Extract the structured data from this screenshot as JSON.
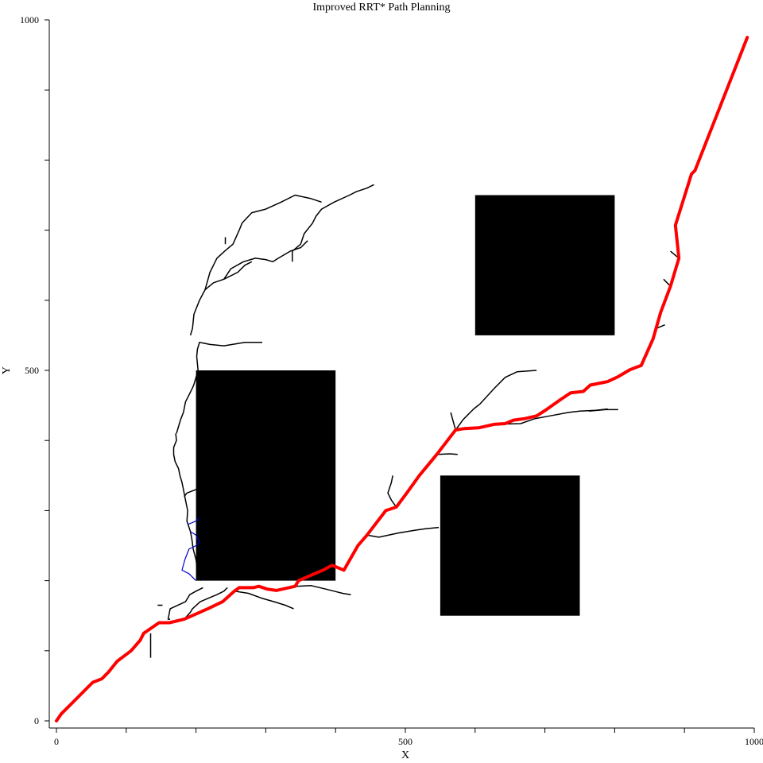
{
  "chart_data": {
    "type": "line",
    "title": "Improved RRT* Path Planning",
    "xlabel": "X",
    "ylabel": "Y",
    "xlim": [
      0,
      1000
    ],
    "ylim": [
      0,
      1000
    ],
    "xticks": [
      0,
      100,
      200,
      300,
      400,
      500,
      600,
      700,
      800,
      900,
      1000
    ],
    "yticks": [
      0,
      100,
      200,
      300,
      400,
      500,
      600,
      700,
      800,
      900,
      1000
    ],
    "xtick_labels": [
      "0",
      "500",
      "1000"
    ],
    "ytick_labels": [
      "0",
      "500",
      "1000"
    ],
    "grid": false,
    "colors": {
      "tree": "#000000",
      "rewired": "#0000cc",
      "path": "#ff0000",
      "obstacle": "#000000"
    },
    "obstacles": [
      {
        "x": 200,
        "y": 200,
        "width": 200,
        "height": 300
      },
      {
        "x": 550,
        "y": 150,
        "width": 200,
        "height": 200
      },
      {
        "x": 600,
        "y": 550,
        "width": 200,
        "height": 200
      }
    ],
    "series": [
      {
        "role": "path",
        "points": [
          [
            0,
            0
          ],
          [
            7,
            10
          ],
          [
            22,
            25
          ],
          [
            52,
            55
          ],
          [
            65,
            60
          ],
          [
            75,
            70
          ],
          [
            87,
            85
          ],
          [
            107,
            100
          ],
          [
            120,
            115
          ],
          [
            125,
            125
          ],
          [
            147,
            140
          ],
          [
            162,
            140
          ],
          [
            183,
            145
          ],
          [
            217,
            160
          ],
          [
            238,
            170
          ],
          [
            255,
            185
          ],
          [
            262,
            190
          ],
          [
            282,
            190
          ],
          [
            290,
            192
          ],
          [
            302,
            188
          ],
          [
            315,
            186
          ],
          [
            333,
            190
          ],
          [
            342,
            192
          ],
          [
            347,
            200
          ],
          [
            363,
            207
          ],
          [
            382,
            215
          ],
          [
            395,
            222
          ],
          [
            412,
            215
          ],
          [
            432,
            250
          ],
          [
            445,
            265
          ],
          [
            472,
            300
          ],
          [
            487,
            305
          ],
          [
            502,
            325
          ],
          [
            520,
            350
          ],
          [
            545,
            380
          ],
          [
            572,
            415
          ],
          [
            585,
            417
          ],
          [
            605,
            418
          ],
          [
            627,
            423
          ],
          [
            643,
            424
          ],
          [
            655,
            429
          ],
          [
            670,
            431
          ],
          [
            688,
            435
          ],
          [
            702,
            444
          ],
          [
            722,
            458
          ],
          [
            737,
            468
          ],
          [
            755,
            470
          ],
          [
            765,
            479
          ],
          [
            790,
            484
          ],
          [
            805,
            491
          ],
          [
            822,
            501
          ],
          [
            838,
            507
          ],
          [
            855,
            545
          ],
          [
            866,
            583
          ],
          [
            880,
            620
          ],
          [
            892,
            660
          ],
          [
            887,
            707
          ],
          [
            910,
            780
          ],
          [
            915,
            785
          ],
          [
            990,
            975
          ]
        ]
      }
    ],
    "tree_branches": [
      [
        [
          163,
          145
        ],
        [
          160,
          145
        ],
        [
          163,
          160
        ],
        [
          185,
          170
        ],
        [
          191,
          180
        ],
        [
          200,
          185
        ],
        [
          210,
          190
        ]
      ],
      [
        [
          255,
          185
        ],
        [
          275,
          182
        ],
        [
          294,
          175
        ],
        [
          312,
          170
        ],
        [
          328,
          165
        ],
        [
          340,
          160
        ]
      ],
      [
        [
          342,
          192
        ],
        [
          365,
          193
        ],
        [
          386,
          188
        ],
        [
          398,
          185
        ],
        [
          410,
          182
        ],
        [
          422,
          180
        ]
      ],
      [
        [
          445,
          265
        ],
        [
          462,
          262
        ],
        [
          490,
          268
        ],
        [
          514,
          272
        ],
        [
          529,
          274
        ],
        [
          548,
          276
        ]
      ],
      [
        [
          487,
          305
        ],
        [
          480,
          315
        ],
        [
          475,
          325
        ],
        [
          480,
          340
        ],
        [
          482,
          350
        ]
      ],
      [
        [
          545,
          380
        ],
        [
          564,
          381
        ],
        [
          575,
          380
        ]
      ],
      [
        [
          565,
          440
        ],
        [
          572,
          415
        ],
        [
          583,
          430
        ],
        [
          598,
          445
        ],
        [
          607,
          452
        ],
        [
          628,
          475
        ],
        [
          643,
          490
        ],
        [
          660,
          498
        ],
        [
          688,
          500
        ]
      ],
      [
        [
          605,
          418
        ],
        [
          627,
          423
        ],
        [
          665,
          424
        ],
        [
          685,
          431
        ],
        [
          707,
          435
        ],
        [
          734,
          440
        ],
        [
          750,
          442
        ],
        [
          773,
          443
        ],
        [
          790,
          445
        ]
      ],
      [
        [
          763,
          442
        ],
        [
          787,
          444
        ],
        [
          805,
          444
        ]
      ],
      [
        [
          790,
          484
        ],
        [
          805,
          491
        ]
      ],
      [
        [
          822,
          501
        ],
        [
          838,
          507
        ],
        [
          845,
          524
        ]
      ],
      [
        [
          855,
          545
        ],
        [
          860,
          560
        ],
        [
          872,
          565
        ]
      ],
      [
        [
          866,
          583
        ],
        [
          872,
          600
        ],
        [
          875,
          605
        ]
      ],
      [
        [
          880,
          620
        ],
        [
          870,
          630
        ]
      ],
      [
        [
          892,
          660
        ],
        [
          880,
          670
        ]
      ],
      [
        [
          135,
          90
        ],
        [
          135,
          125
        ]
      ],
      [
        [
          145,
          165
        ],
        [
          152,
          165
        ]
      ],
      [
        [
          183,
          145
        ],
        [
          192,
          155
        ],
        [
          195,
          160
        ],
        [
          206,
          170
        ],
        [
          218,
          175
        ],
        [
          230,
          180
        ],
        [
          240,
          185
        ],
        [
          245,
          190
        ]
      ],
      [
        [
          207,
          200
        ],
        [
          202,
          215
        ],
        [
          200,
          230
        ],
        [
          196,
          245
        ],
        [
          194,
          260
        ],
        [
          192,
          270
        ],
        [
          187,
          285
        ],
        [
          188,
          300
        ],
        [
          185,
          315
        ],
        [
          182,
          330
        ],
        [
          180,
          340
        ],
        [
          177,
          350
        ],
        [
          175,
          360
        ],
        [
          170,
          370
        ],
        [
          168,
          380
        ],
        [
          168,
          390
        ],
        [
          172,
          400
        ],
        [
          171,
          410
        ]
      ],
      [
        [
          172,
          410
        ],
        [
          175,
          420
        ],
        [
          178,
          430
        ],
        [
          182,
          440
        ],
        [
          185,
          455
        ],
        [
          190,
          465
        ],
        [
          195,
          475
        ],
        [
          197,
          480
        ],
        [
          200,
          490
        ],
        [
          203,
          500
        ]
      ],
      [
        [
          183,
          320
        ],
        [
          187,
          325
        ],
        [
          200,
          330
        ],
        [
          207,
          335
        ]
      ],
      [
        [
          203,
          500
        ],
        [
          201,
          520
        ],
        [
          202,
          530
        ],
        [
          205,
          540
        ],
        [
          220,
          537
        ],
        [
          240,
          535
        ],
        [
          270,
          540
        ],
        [
          295,
          540
        ]
      ],
      [
        [
          192,
          550
        ],
        [
          195,
          560
        ],
        [
          197,
          580
        ],
        [
          205,
          600
        ],
        [
          213,
          615
        ],
        [
          225,
          625
        ],
        [
          240,
          630
        ],
        [
          260,
          640
        ],
        [
          270,
          650
        ],
        [
          280,
          655
        ]
      ],
      [
        [
          213,
          615
        ],
        [
          220,
          640
        ],
        [
          225,
          650
        ],
        [
          230,
          660
        ],
        [
          241,
          670
        ],
        [
          253,
          680
        ],
        [
          262,
          700
        ]
      ],
      [
        [
          262,
          700
        ],
        [
          266,
          710
        ],
        [
          280,
          725
        ],
        [
          300,
          730
        ],
        [
          322,
          740
        ],
        [
          342,
          750
        ],
        [
          365,
          745
        ],
        [
          380,
          740
        ]
      ],
      [
        [
          240,
          630
        ],
        [
          250,
          645
        ],
        [
          268,
          655
        ],
        [
          285,
          660
        ],
        [
          300,
          658
        ],
        [
          310,
          655
        ],
        [
          318,
          660
        ],
        [
          335,
          670
        ],
        [
          350,
          675
        ],
        [
          360,
          685
        ]
      ],
      [
        [
          338,
          655
        ],
        [
          338,
          670
        ],
        [
          350,
          680
        ],
        [
          355,
          695
        ],
        [
          367,
          710
        ],
        [
          372,
          720
        ],
        [
          380,
          730
        ],
        [
          398,
          740
        ],
        [
          420,
          750
        ],
        [
          430,
          755
        ],
        [
          445,
          760
        ],
        [
          455,
          765
        ]
      ],
      [
        [
          242,
          680
        ],
        [
          242,
          690
        ]
      ]
    ],
    "rewired_branches": [
      [
        [
          200,
          200
        ],
        [
          190,
          210
        ],
        [
          180,
          215
        ],
        [
          184,
          230
        ],
        [
          190,
          245
        ],
        [
          200,
          250
        ],
        [
          205,
          255
        ],
        [
          200,
          265
        ]
      ],
      [
        [
          200,
          265
        ],
        [
          192,
          270
        ]
      ],
      [
        [
          188,
          280
        ],
        [
          200,
          285
        ],
        [
          205,
          290
        ]
      ]
    ]
  }
}
